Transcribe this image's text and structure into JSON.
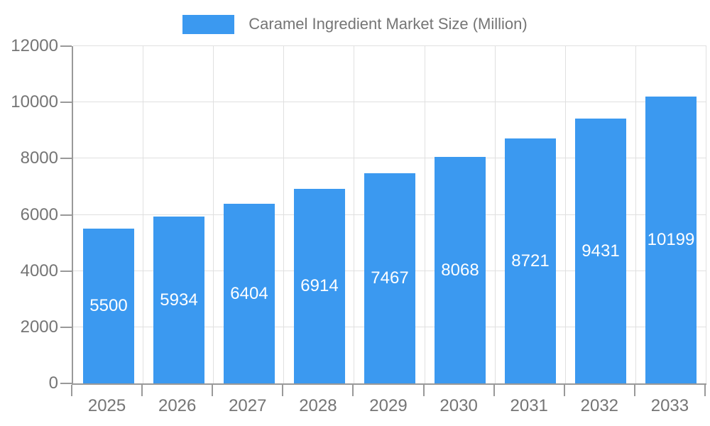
{
  "legend": {
    "label": "Caramel Ingredient Market Size (Million)"
  },
  "chart_data": {
    "type": "bar",
    "title": "Caramel Ingredient Market Size (Million)",
    "categories": [
      "2025",
      "2026",
      "2027",
      "2028",
      "2029",
      "2030",
      "2031",
      "2032",
      "2033"
    ],
    "values": [
      5500,
      5934,
      6404,
      6914,
      7467,
      8068,
      8721,
      9431,
      10199
    ],
    "xlabel": "",
    "ylabel": "",
    "ylim": [
      0,
      12000
    ],
    "ytick_step": 2000,
    "yticks": [
      0,
      2000,
      4000,
      6000,
      8000,
      10000,
      12000
    ],
    "grid": true,
    "legend_position": "top",
    "value_labels": "inside-center"
  },
  "colors": {
    "bar": "#3B99F0",
    "grid": "#e0e0e0",
    "axis": "#999999",
    "tick_text": "#757575",
    "legend_text": "#757575",
    "value_text": "#ffffff",
    "background": "#ffffff"
  }
}
